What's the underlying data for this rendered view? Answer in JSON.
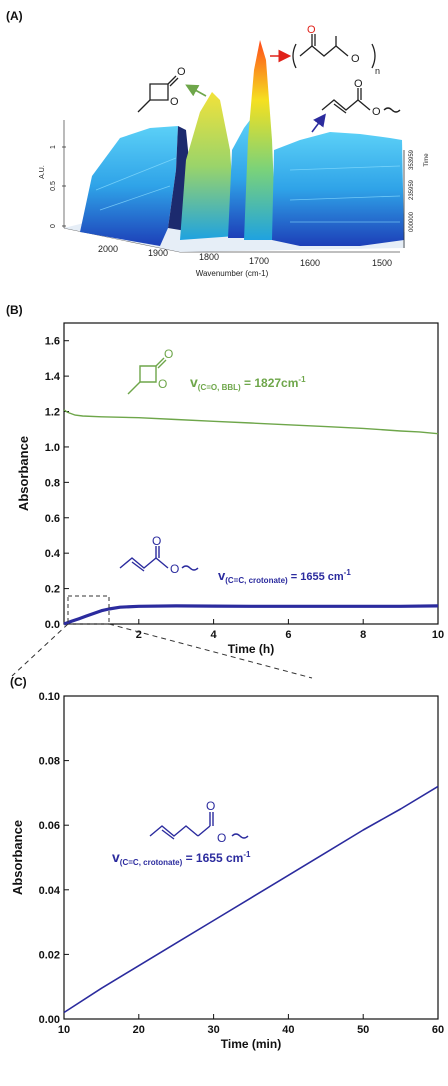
{
  "panels": {
    "a_label": "(A)",
    "b_label": "(B)",
    "c_label": "(C)"
  },
  "panel_a": {
    "z_axis_label": "A.U.",
    "z_ticks": [
      "1",
      "0.5",
      "0"
    ],
    "x_axis_label": "Wavenumber (cm-1)",
    "x_ticks": [
      "2000",
      "1900",
      "1800",
      "1700",
      "1600",
      "1500"
    ],
    "time_label": "Time",
    "time_ticks": [
      "000000",
      "235959",
      "353959"
    ],
    "molecule_bbl": {
      "atoms": [
        "O",
        "O"
      ]
    },
    "molecule_polymer": {
      "atoms": [
        "O",
        "O"
      ],
      "subscript": "n"
    },
    "molecule_crotonate": {
      "atoms": [
        "O",
        "O"
      ]
    }
  },
  "colors": {
    "green": "#6ea64a",
    "blue": "#2b2b9e",
    "red": "#e0221a",
    "surface_light": "#3ab8ef",
    "surface_dark": "#1f4fc4"
  },
  "chart_data": [
    {
      "type": "line",
      "panel": "B",
      "xlabel": "Time (h)",
      "ylabel": "Absorbance",
      "xlim": [
        0,
        10
      ],
      "ylim": [
        0,
        1.7
      ],
      "x_ticks": [
        2,
        4,
        6,
        8,
        10
      ],
      "x_tick_labels": [
        "2",
        "4",
        "6",
        "8",
        "10"
      ],
      "y_ticks": [
        0.0,
        0.2,
        0.4,
        0.6,
        0.8,
        1.0,
        1.2,
        1.4,
        1.6
      ],
      "y_tick_labels": [
        "0.0",
        "0.2",
        "0.4",
        "0.6",
        "0.8",
        "1.0",
        "1.2",
        "1.4",
        "1.6"
      ],
      "annotations": {
        "bbl_prefix": "v",
        "bbl_sub": "(C=O, BBL)",
        "bbl_value": " = 1827cm",
        "bbl_exp": "-1",
        "crot_prefix": "v",
        "crot_sub": "(C=C, crotonate)",
        "crot_value": " = 1655 cm",
        "crot_exp": "-1"
      },
      "series": [
        {
          "color": "#6ea64a",
          "x": [
            0,
            0.1,
            0.3,
            0.5,
            1,
            2,
            3,
            4,
            5,
            6,
            7,
            8,
            9,
            9.5,
            10
          ],
          "y": [
            1.21,
            1.195,
            1.18,
            1.175,
            1.17,
            1.165,
            1.155,
            1.145,
            1.135,
            1.125,
            1.115,
            1.105,
            1.09,
            1.085,
            1.075
          ]
        },
        {
          "color": "#2b2b9e",
          "x": [
            0,
            0.2,
            0.4,
            0.6,
            0.8,
            1.0,
            1.2,
            1.5,
            2,
            3,
            4,
            5,
            6,
            7,
            8,
            9,
            10
          ],
          "y": [
            0.0,
            0.015,
            0.03,
            0.045,
            0.06,
            0.075,
            0.085,
            0.095,
            0.1,
            0.102,
            0.101,
            0.1,
            0.1,
            0.1,
            0.1,
            0.1,
            0.102
          ]
        }
      ]
    },
    {
      "type": "line",
      "panel": "C",
      "xlabel": "Time (min)",
      "ylabel": "Absorbance",
      "xlim": [
        10,
        60
      ],
      "ylim": [
        0,
        0.1
      ],
      "x_ticks": [
        10,
        20,
        30,
        40,
        50,
        60
      ],
      "x_tick_labels": [
        "10",
        "20",
        "30",
        "40",
        "50",
        "60"
      ],
      "y_ticks": [
        0.0,
        0.02,
        0.04,
        0.06,
        0.08,
        0.1
      ],
      "y_tick_labels": [
        "0.00",
        "0.02",
        "0.04",
        "0.06",
        "0.08",
        "0.10"
      ],
      "annotations": {
        "crot_prefix": "v",
        "crot_sub": "(C=C, crotonate)",
        "crot_value": " = 1655 cm",
        "crot_exp": "-1"
      },
      "series": [
        {
          "color": "#2b2b9e",
          "x": [
            10,
            15,
            20,
            25,
            30,
            35,
            40,
            45,
            50,
            55,
            60
          ],
          "y": [
            0.002,
            0.0095,
            0.0165,
            0.0235,
            0.0305,
            0.0375,
            0.0445,
            0.0515,
            0.0585,
            0.065,
            0.072
          ]
        }
      ]
    }
  ]
}
